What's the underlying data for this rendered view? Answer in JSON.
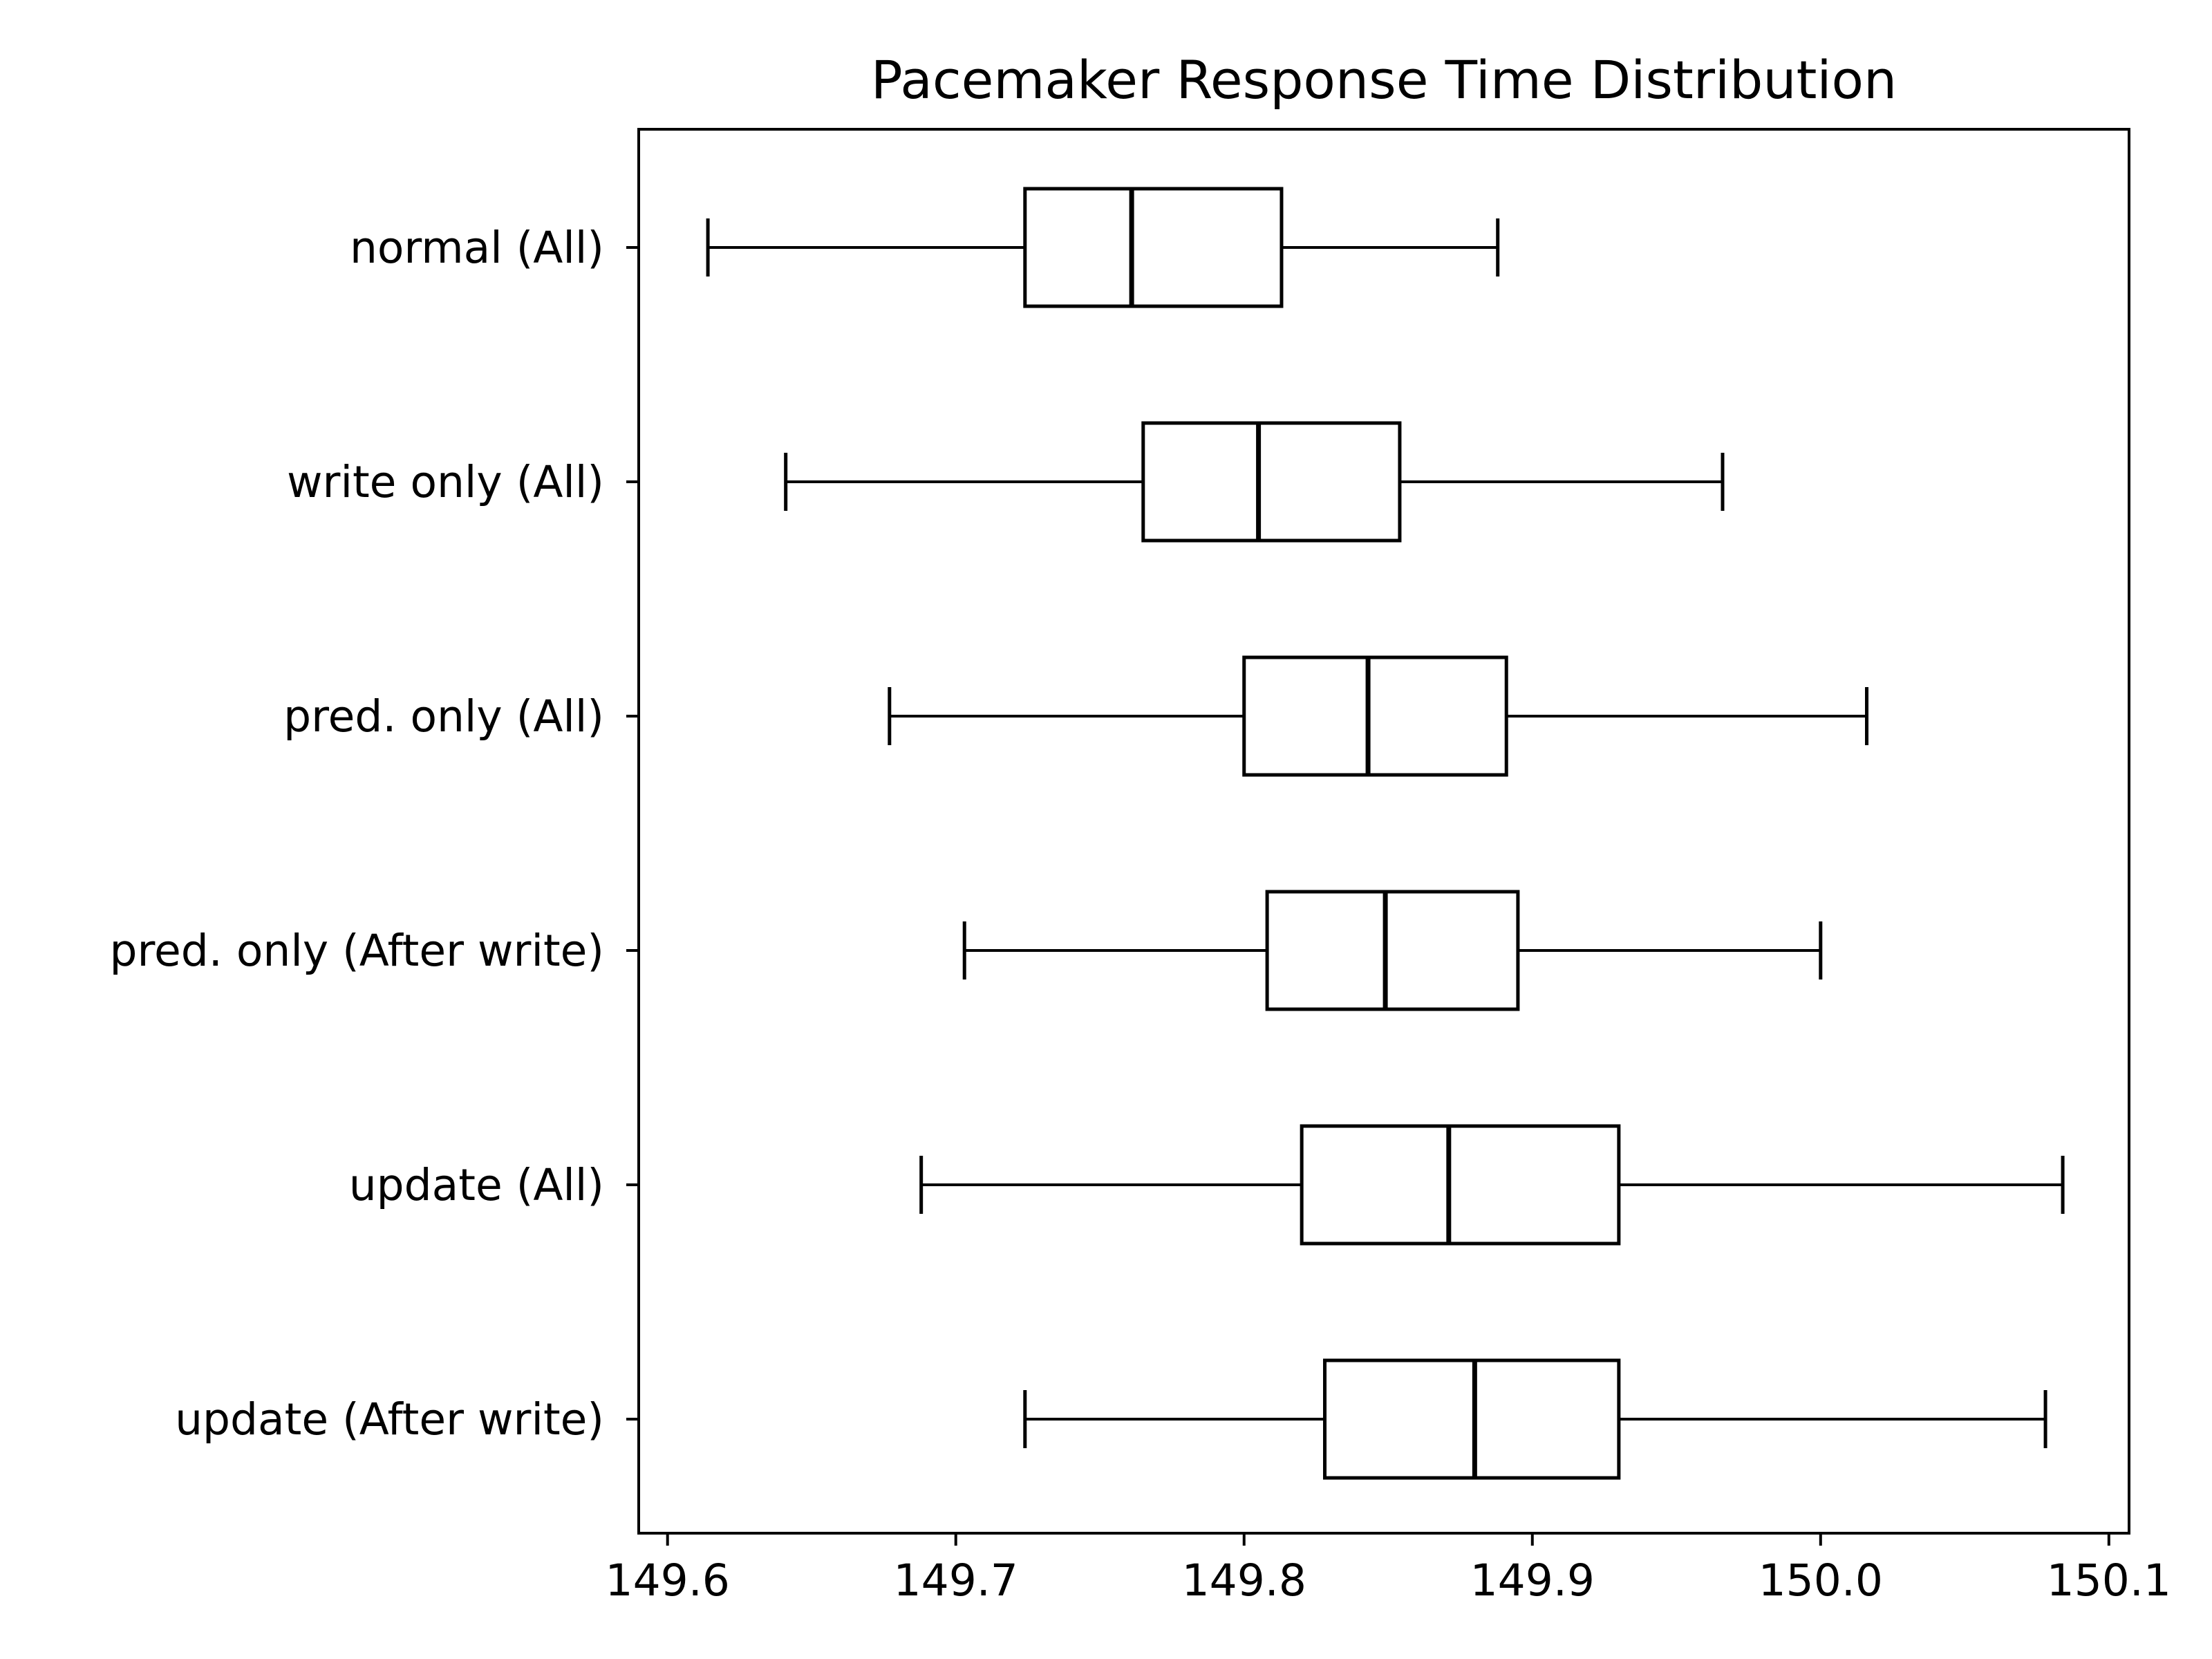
{
  "chart_data": {
    "type": "boxplot",
    "orientation": "horizontal",
    "title": "Pacemaker Response Time Distribution",
    "xlabel": "",
    "ylabel": "",
    "xlim": [
      149.59,
      150.107
    ],
    "xticks": [
      {
        "value": 149.6,
        "label": "149.6"
      },
      {
        "value": 149.7,
        "label": "149.7"
      },
      {
        "value": 149.8,
        "label": "149.8"
      },
      {
        "value": 149.9,
        "label": "149.9"
      },
      {
        "value": 150.0,
        "label": "150.0"
      },
      {
        "value": 150.1,
        "label": "150.1"
      }
    ],
    "grid": false,
    "legend": "none",
    "colors": {
      "box_stroke": "#000000",
      "background": "#ffffff"
    },
    "categories": [
      "normal (All)",
      "write only (All)",
      "pred. only (All)",
      "pred. only (After write)",
      "update (All)",
      "update (After write)"
    ],
    "boxes": [
      {
        "label": "normal (All)",
        "whisker_low": 149.614,
        "q1": 149.724,
        "median": 149.761,
        "q3": 149.813,
        "whisker_high": 149.888
      },
      {
        "label": "write only (All)",
        "whisker_low": 149.641,
        "q1": 149.765,
        "median": 149.805,
        "q3": 149.854,
        "whisker_high": 149.966
      },
      {
        "label": "pred. only (All)",
        "whisker_low": 149.677,
        "q1": 149.8,
        "median": 149.843,
        "q3": 149.891,
        "whisker_high": 150.016
      },
      {
        "label": "pred. only (After write)",
        "whisker_low": 149.703,
        "q1": 149.808,
        "median": 149.849,
        "q3": 149.895,
        "whisker_high": 150.0
      },
      {
        "label": "update (All)",
        "whisker_low": 149.688,
        "q1": 149.82,
        "median": 149.871,
        "q3": 149.93,
        "whisker_high": 150.084
      },
      {
        "label": "update (After write)",
        "whisker_low": 149.724,
        "q1": 149.828,
        "median": 149.88,
        "q3": 149.93,
        "whisker_high": 150.078
      }
    ]
  }
}
